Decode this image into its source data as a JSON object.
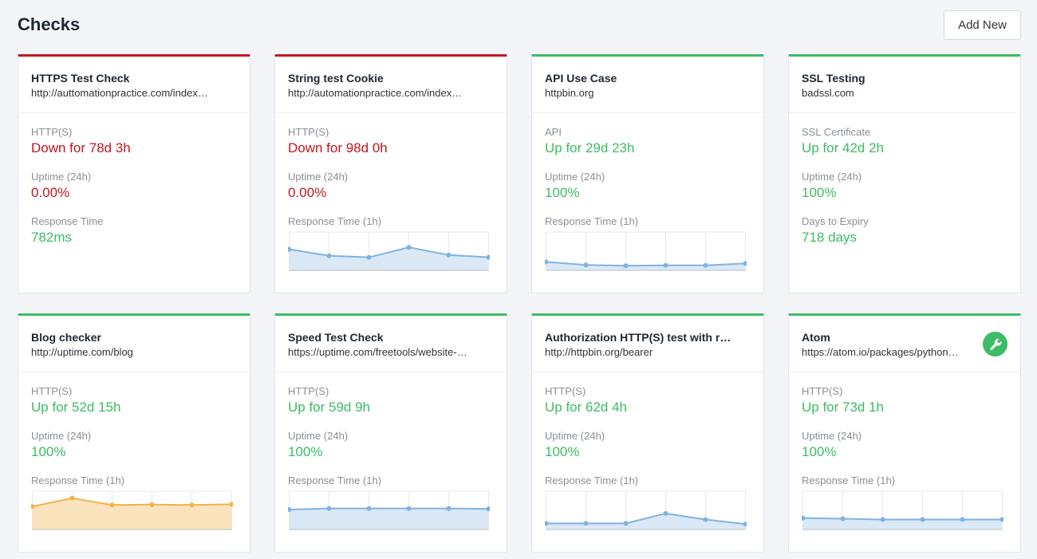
{
  "header": {
    "title": "Checks",
    "add_label": "Add New"
  },
  "colors": {
    "up": "#3dbc63",
    "down": "#c4161c",
    "blue_line": "#7fb3e0",
    "blue_fill": "#dbe8f6",
    "orange_line": "#f0b24a",
    "orange_fill": "#fbe4bd"
  },
  "cards": [
    {
      "name": "HTTPS Test Check",
      "url": "http://auttomationpractice.com/index…",
      "status": "down",
      "type_label": "HTTP(S)",
      "state": "Down for 78d 3h",
      "uptime_label": "Uptime (24h)",
      "uptime": "0.00%",
      "third_label": "Response Time",
      "third_value": "782ms",
      "chart": null,
      "wrench": false
    },
    {
      "name": "String test Cookie",
      "url": "http://automationpractice.com/index…",
      "status": "down",
      "type_label": "HTTP(S)",
      "state": "Down for 98d 0h",
      "uptime_label": "Uptime (24h)",
      "uptime": "0.00%",
      "third_label": "Response Time (1h)",
      "third_value": "",
      "chart": {
        "color": "blue",
        "values": [
          0.55,
          0.38,
          0.34,
          0.6,
          0.4,
          0.34
        ]
      },
      "wrench": false
    },
    {
      "name": "API Use Case",
      "url": "httpbin.org",
      "status": "up",
      "type_label": "API",
      "state": "Up for 29d 23h",
      "uptime_label": "Uptime (24h)",
      "uptime": "100%",
      "third_label": "Response Time (1h)",
      "third_value": "",
      "chart": {
        "color": "blue",
        "values": [
          0.22,
          0.14,
          0.12,
          0.13,
          0.13,
          0.18
        ]
      },
      "wrench": false
    },
    {
      "name": "SSL Testing",
      "url": "badssl.com",
      "status": "up",
      "type_label": "SSL Certificate",
      "state": "Up for 42d 2h",
      "uptime_label": "Uptime (24h)",
      "uptime": "100%",
      "third_label": "Days to Expiry",
      "third_value": "718 days",
      "chart": null,
      "wrench": false
    },
    {
      "name": "Blog checker",
      "url": "http://uptime.com/blog",
      "status": "up",
      "type_label": "HTTP(S)",
      "state": "Up for 52d 15h",
      "uptime_label": "Uptime (24h)",
      "uptime": "100%",
      "third_label": "Response Time (1h)",
      "third_value": "",
      "chart": {
        "color": "orange",
        "values": [
          0.6,
          0.82,
          0.64,
          0.65,
          0.64,
          0.66
        ]
      },
      "wrench": false
    },
    {
      "name": "Speed Test Check",
      "url": "https://uptime.com/freetools/website-…",
      "status": "up",
      "type_label": "HTTP(S)",
      "state": "Up for 59d 9h",
      "uptime_label": "Uptime (24h)",
      "uptime": "100%",
      "third_label": "Response Time (1h)",
      "third_value": "",
      "chart": {
        "color": "blue",
        "values": [
          0.52,
          0.55,
          0.55,
          0.55,
          0.55,
          0.54
        ]
      },
      "wrench": false
    },
    {
      "name": "Authorization HTTP(S) test with regex",
      "url": "http://httpbin.org/bearer",
      "status": "up",
      "type_label": "HTTP(S)",
      "state": "Up for 62d 4h",
      "uptime_label": "Uptime (24h)",
      "uptime": "100%",
      "third_label": "Response Time (1h)",
      "third_value": "",
      "chart": {
        "color": "blue",
        "values": [
          0.16,
          0.16,
          0.16,
          0.42,
          0.26,
          0.14
        ]
      },
      "wrench": false
    },
    {
      "name": "Atom",
      "url": "https://atom.io/packages/python…",
      "status": "up",
      "type_label": "HTTP(S)",
      "state": "Up for 73d 1h",
      "uptime_label": "Uptime (24h)",
      "uptime": "100%",
      "third_label": "Response Time (1h)",
      "third_value": "",
      "chart": {
        "color": "blue",
        "values": [
          0.3,
          0.28,
          0.26,
          0.26,
          0.26,
          0.26
        ]
      },
      "wrench": true
    }
  ]
}
